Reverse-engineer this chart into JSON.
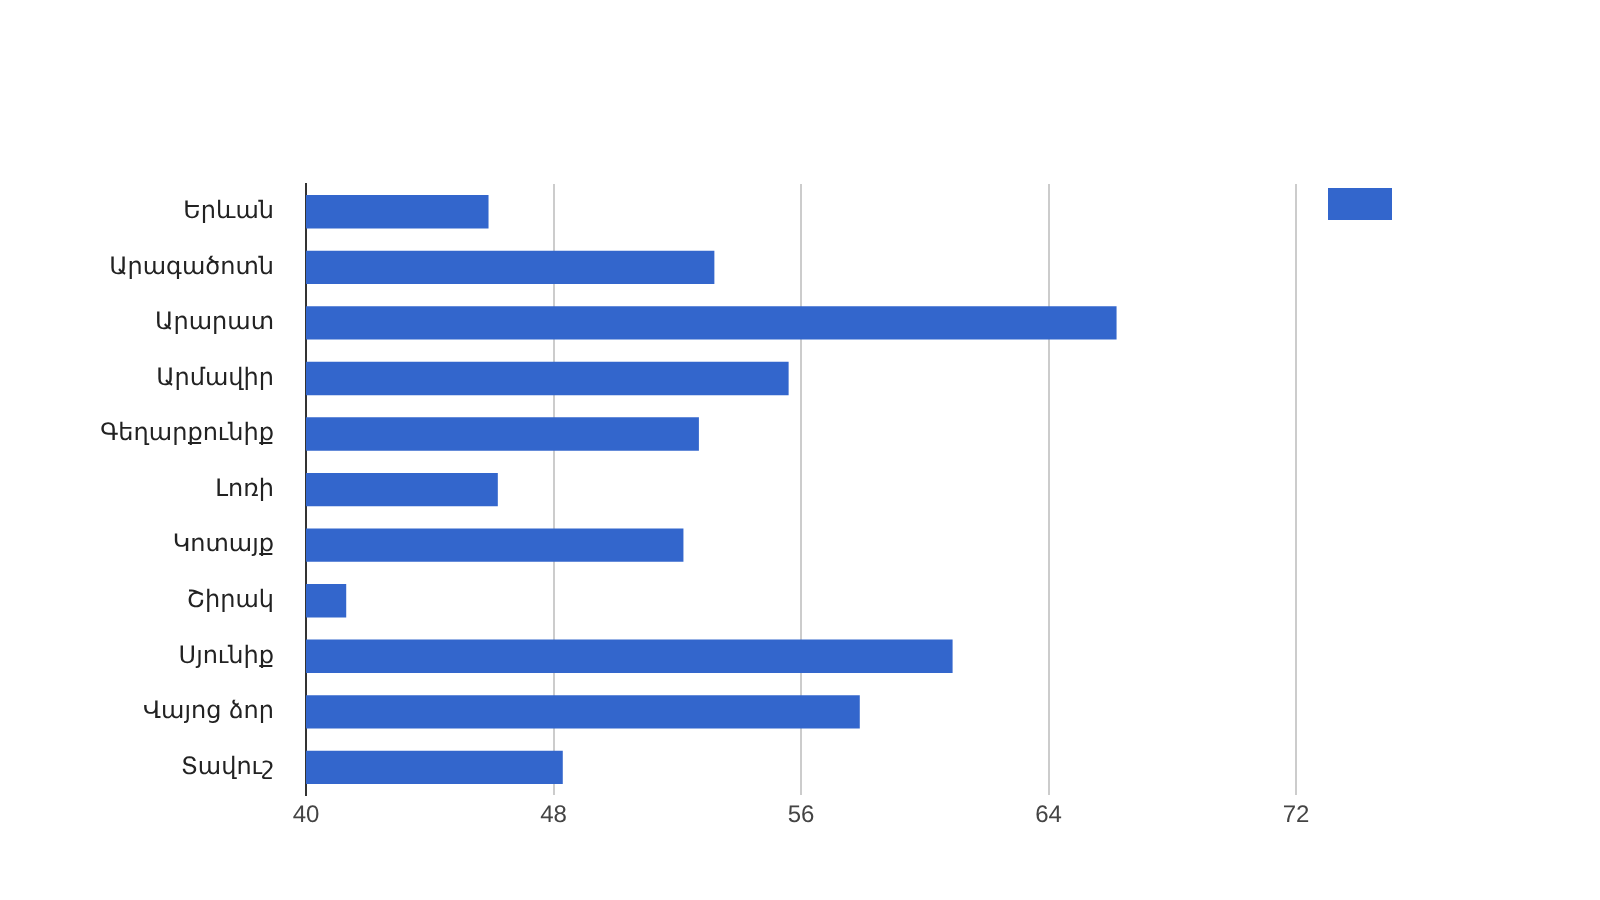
{
  "chart_data": {
    "type": "bar",
    "orientation": "horizontal",
    "categories": [
      "Երևան",
      "Արագածոտն",
      "Արարատ",
      "Արմավիր",
      "Գեղարքունիք",
      "Լոռի",
      "Կոտայք",
      "Շիրակ",
      "Սյունիք",
      "Վայոց ձոր",
      "Տավուշ"
    ],
    "series": [
      {
        "color": "#3366cc",
        "values": [
          45.9,
          53.2,
          66.2,
          55.6,
          52.7,
          46.2,
          52.2,
          41.3,
          60.9,
          57.9,
          48.3
        ]
      }
    ],
    "xlim": [
      40,
      72
    ],
    "xticks": [
      40,
      48,
      56,
      64,
      72
    ],
    "grid": "x"
  }
}
